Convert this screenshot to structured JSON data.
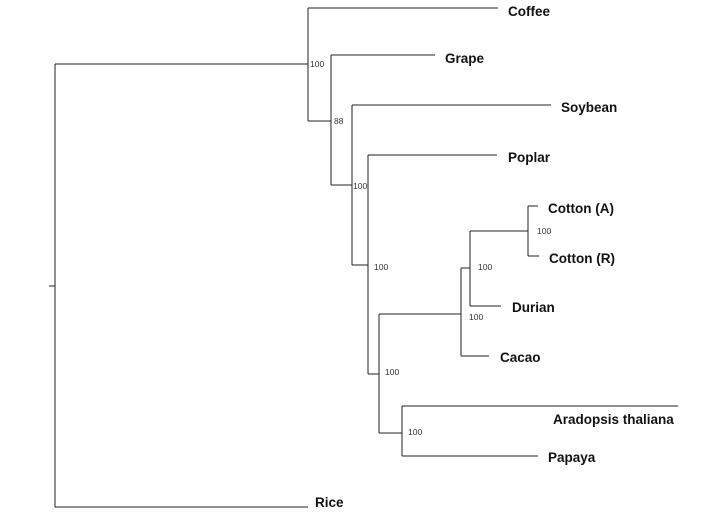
{
  "tree": {
    "taxa": [
      {
        "id": "coffee",
        "label": "Coffee"
      },
      {
        "id": "grape",
        "label": "Grape"
      },
      {
        "id": "soybean",
        "label": "Soybean"
      },
      {
        "id": "poplar",
        "label": "Poplar"
      },
      {
        "id": "cotton-a",
        "label": "Cotton (A)"
      },
      {
        "id": "cotton-r",
        "label": "Cotton (R)"
      },
      {
        "id": "durian",
        "label": "Durian"
      },
      {
        "id": "cacao",
        "label": "Cacao"
      },
      {
        "id": "arabidopsis",
        "label": "Aradopsis thaliana"
      },
      {
        "id": "papaya",
        "label": "Papaya"
      },
      {
        "id": "rice",
        "label": "Rice"
      }
    ],
    "support_values": [
      {
        "id": "coffee-node",
        "label": "100"
      },
      {
        "id": "grape-node",
        "label": "88"
      },
      {
        "id": "soybean-node",
        "label": "100"
      },
      {
        "id": "poplar-node",
        "label": "100"
      },
      {
        "id": "cotton-node",
        "label": "100"
      },
      {
        "id": "durian-node",
        "label": "100"
      },
      {
        "id": "cacao-node",
        "label": "100"
      },
      {
        "id": "malvaceae-node",
        "label": "100"
      },
      {
        "id": "brassicales-node",
        "label": "100"
      }
    ]
  }
}
